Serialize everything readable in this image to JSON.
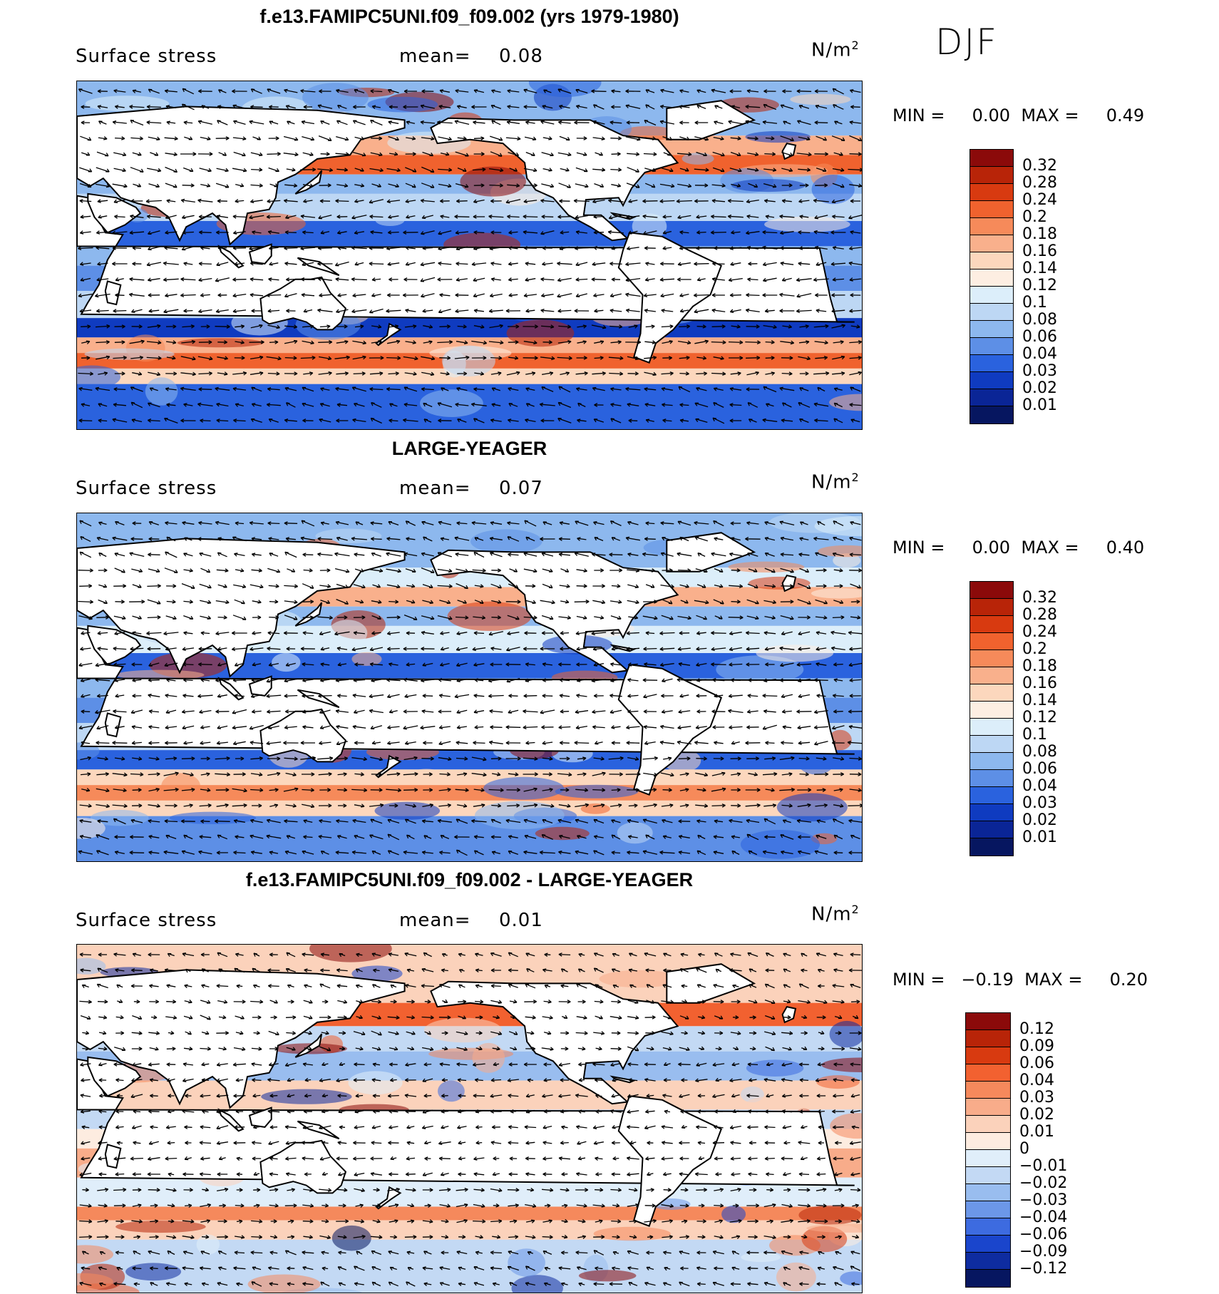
{
  "season": "DJF",
  "unit_base": "N/m",
  "unit_exp": "2",
  "panels": [
    {
      "title": "f.e13.FAMIPC5UNI.f09_f09.002 (yrs 1979-1980)",
      "variable": "Surface stress",
      "mean_label": "mean=",
      "mean_value": "0.08",
      "min_max": "MIN =     0.00  MAX =     0.49",
      "colorbar_labels": [
        "0.32",
        "0.28",
        "0.24",
        "0.2",
        "0.18",
        "0.16",
        "0.14",
        "0.12",
        "0.1",
        "0.08",
        "0.06",
        "0.04",
        "0.03",
        "0.02",
        "0.01"
      ]
    },
    {
      "title": "LARGE-YEAGER",
      "variable": "Surface stress",
      "mean_label": "mean=",
      "mean_value": "0.07",
      "min_max": "MIN =     0.00  MAX =     0.40",
      "colorbar_labels": [
        "0.32",
        "0.28",
        "0.24",
        "0.2",
        "0.18",
        "0.16",
        "0.14",
        "0.12",
        "0.1",
        "0.08",
        "0.06",
        "0.04",
        "0.03",
        "0.02",
        "0.01"
      ]
    },
    {
      "title": "f.e13.FAMIPC5UNI.f09_f09.002 - LARGE-YEAGER",
      "variable": "Surface stress",
      "mean_label": "mean=",
      "mean_value": "0.01",
      "min_max": "MIN =   −0.19  MAX =     0.20",
      "colorbar_labels": [
        "0.12",
        "0.09",
        "0.06",
        "0.04",
        "0.03",
        "0.02",
        "0.01",
        "0",
        "−0.01",
        "−0.02",
        "−0.03",
        "−0.04",
        "−0.06",
        "−0.09",
        "−0.12"
      ]
    }
  ],
  "colors": {
    "seq_colorbar": [
      "#8b0a0a",
      "#b82408",
      "#d83a10",
      "#f0622e",
      "#f68a5a",
      "#f9b08c",
      "#fcd7bd",
      "#fdeee2",
      "#dceefa",
      "#bdd7f4",
      "#8db8ee",
      "#5d8fe6",
      "#2a62de",
      "#0f3bc0",
      "#0a2596",
      "#061660"
    ],
    "div_colorbar": [
      "#8b0a0a",
      "#b82408",
      "#d83a10",
      "#f26130",
      "#f5895c",
      "#f8ac8a",
      "#fbd2bb",
      "#fdece0",
      "#e0eefa",
      "#c3d9f4",
      "#99bdef",
      "#6c97e8",
      "#3d6be0",
      "#1a45cc",
      "#0e2ca0",
      "#061660"
    ]
  }
}
